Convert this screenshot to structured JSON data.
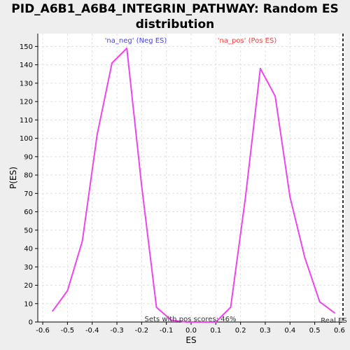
{
  "chart_data": {
    "type": "line",
    "title": "PID_A6B1_A6B4_INTEGRIN_PATHWAY: Random ES distribution",
    "xlabel": "ES",
    "ylabel": "P(ES)",
    "xlim": [
      -0.62,
      0.62
    ],
    "ylim": [
      0,
      157
    ],
    "xticks": [
      -0.6,
      -0.5,
      -0.4,
      -0.3,
      -0.2,
      -0.1,
      0.0,
      0.1,
      0.2,
      0.3,
      0.4,
      0.5,
      0.6
    ],
    "xtick_labels": [
      "-0.6",
      "-0.5",
      "-0.4",
      "-0.3",
      "-0.2",
      "-0.1",
      "0.0",
      "0.1",
      "0.2",
      "0.3",
      "0.4",
      "0.5",
      "0.6"
    ],
    "yticks": [
      0,
      10,
      20,
      30,
      40,
      50,
      60,
      70,
      80,
      90,
      100,
      110,
      120,
      130,
      140,
      150
    ],
    "grid": true,
    "series": [
      {
        "color": "#ee44ee",
        "x": [
          -0.56,
          -0.5,
          -0.44,
          -0.38,
          -0.32,
          -0.26,
          -0.2,
          -0.14,
          -0.08,
          -0.02,
          0.04,
          0.1,
          0.16,
          0.22,
          0.28,
          0.34,
          0.4,
          0.46,
          0.52,
          0.58
        ],
        "y": [
          6,
          17,
          44,
          102,
          141,
          149,
          74,
          8,
          1,
          0,
          0,
          0,
          8,
          68,
          138,
          123,
          68,
          35,
          11,
          5
        ]
      }
    ],
    "annotations": {
      "neg_label": "'na_neg' (Neg ES)",
      "neg_color": "#4444dd",
      "pos_label": "'na_pos' (Pos ES)",
      "pos_color": "#ee4444",
      "sets_label": "Sets with pos scores: 46%",
      "real_es_label": "Real ES",
      "real_es_value": 0.62
    }
  }
}
